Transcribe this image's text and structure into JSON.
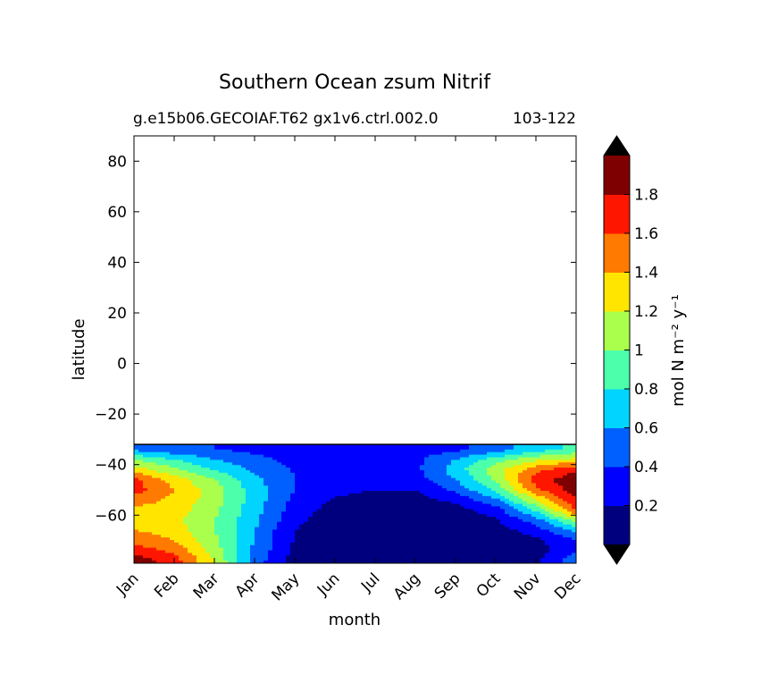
{
  "chart_data": {
    "type": "heatmap",
    "title": "Southern Ocean zsum Nitrif",
    "subtitle_left": "g.e15b06.GECOIAF.T62 gx1v6.ctrl.002.0",
    "subtitle_right": "103-122",
    "xlabel": "month",
    "ylabel": "latitude",
    "x_categories": [
      "Jan",
      "Feb",
      "Mar",
      "Apr",
      "May",
      "Jun",
      "Jul",
      "Aug",
      "Sep",
      "Oct",
      "Nov",
      "Dec"
    ],
    "ylim": [
      -79,
      90
    ],
    "y_ticks": [
      "80",
      "60",
      "40",
      "20",
      "0",
      "−20",
      "−40",
      "−60"
    ],
    "y_tick_values": [
      80,
      60,
      40,
      20,
      0,
      -20,
      -40,
      -60
    ],
    "data_lat_top": -32,
    "colorbar": {
      "label": "mol N m⁻² y⁻¹",
      "levels": [
        0,
        0.2,
        0.4,
        0.6,
        0.8,
        1.0,
        1.2,
        1.4,
        1.6,
        1.8,
        2.0
      ],
      "tick_labels": [
        "0.2",
        "0.4",
        "0.6",
        "0.8",
        "1",
        "1.2",
        "1.4",
        "1.6",
        "1.8"
      ],
      "colors": [
        "#00007f",
        "#0000ff",
        "#0060ff",
        "#00d4ff",
        "#4cffaa",
        "#aaff4c",
        "#ffe500",
        "#ff7a00",
        "#ff1600",
        "#7f0000"
      ],
      "under_color": "#000000",
      "over_color": "#000000"
    },
    "lat_rows": [
      -34,
      -38,
      -42,
      -46,
      -50,
      -54,
      -58,
      -62,
      -66,
      -70,
      -74,
      -78
    ],
    "grid": [
      [
        0.55,
        0.45,
        0.4,
        0.35,
        0.3,
        0.28,
        0.28,
        0.3,
        0.35,
        0.5,
        0.7,
        0.85
      ],
      [
        1.0,
        0.8,
        0.6,
        0.45,
        0.35,
        0.3,
        0.3,
        0.35,
        0.6,
        0.9,
        1.15,
        1.25
      ],
      [
        1.3,
        1.05,
        0.8,
        0.55,
        0.38,
        0.3,
        0.3,
        0.35,
        0.7,
        1.1,
        1.55,
        1.75
      ],
      [
        1.65,
        1.3,
        1.0,
        0.65,
        0.4,
        0.3,
        0.25,
        0.3,
        0.6,
        1.05,
        1.7,
        1.95
      ],
      [
        1.7,
        1.4,
        1.1,
        0.7,
        0.4,
        0.25,
        0.2,
        0.2,
        0.45,
        0.85,
        1.55,
        1.9
      ],
      [
        1.5,
        1.35,
        1.1,
        0.7,
        0.35,
        0.18,
        0.12,
        0.12,
        0.25,
        0.55,
        1.2,
        1.8
      ],
      [
        1.35,
        1.3,
        1.05,
        0.68,
        0.3,
        0.12,
        0.08,
        0.08,
        0.12,
        0.3,
        0.85,
        1.6
      ],
      [
        1.3,
        1.25,
        1.0,
        0.65,
        0.25,
        0.08,
        0.05,
        0.05,
        0.08,
        0.18,
        0.5,
        1.1
      ],
      [
        1.4,
        1.3,
        1.0,
        0.6,
        0.2,
        0.06,
        0.04,
        0.04,
        0.05,
        0.1,
        0.3,
        0.65
      ],
      [
        1.55,
        1.4,
        1.05,
        0.6,
        0.18,
        0.05,
        0.03,
        0.03,
        0.04,
        0.06,
        0.15,
        0.4
      ],
      [
        1.7,
        1.55,
        1.1,
        0.55,
        0.15,
        0.05,
        0.03,
        0.03,
        0.03,
        0.05,
        0.12,
        0.35
      ],
      [
        1.95,
        1.7,
        1.2,
        0.5,
        0.12,
        0.04,
        0.03,
        0.03,
        0.03,
        0.05,
        0.15,
        0.55
      ]
    ]
  }
}
